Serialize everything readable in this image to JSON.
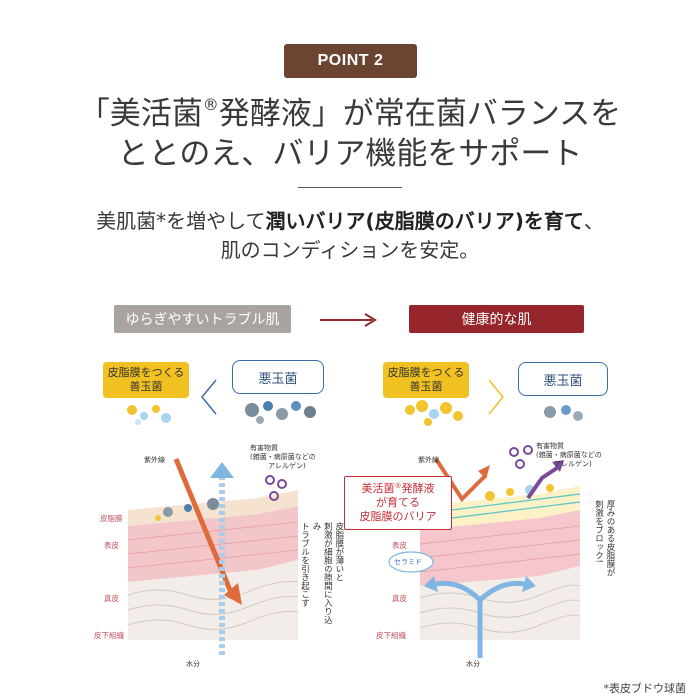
{
  "badge": "POINT 2",
  "headline": {
    "line1_pre": "「美活菌",
    "line1_reg": "®",
    "line1_post": "発酵液」が常在菌バランスを",
    "line2": "ととのえ、バリア機能をサポート"
  },
  "subline": {
    "line1_pre": "美肌菌*を増やして",
    "line1_bold": "潤いバリア(皮脂膜のバリア)を育て",
    "line1_post": "、",
    "line2": "肌のコンディションを安定。"
  },
  "left": {
    "state_label": "ゆらぎやすいトラブル肌",
    "good_line1": "皮脂膜をつくる",
    "good_line2": "善玉菌",
    "bad_label": "悪玉菌",
    "uv_label": "紫外線",
    "harmful_line1": "有害物質",
    "harmful_line2": "(雑菌・病原菌などの",
    "harmful_line3": "アレルゲン)",
    "layer_sebum": "皮脂膜",
    "layer_epidermis": "表皮",
    "layer_dermis": "真皮",
    "layer_subcutis": "皮下組織",
    "water_label": "水分",
    "side_note_1": "皮脂膜が薄いと",
    "side_note_2": "刺激が細胞の隙間に入り込み",
    "side_note_3": "トラブルを引き起こす"
  },
  "right": {
    "state_label": "健康的な肌",
    "good_line1": "皮脂膜をつくる",
    "good_line2": "善玉菌",
    "bad_label": "悪玉菌",
    "uv_label": "紫外線",
    "harmful_line1": "有害物質",
    "harmful_line2": "(雑菌・病原菌などの",
    "harmful_line3": "アレルゲン)",
    "callout_line1_pre": "美活菌",
    "callout_line1_reg": "®",
    "callout_line1_post": "発酵液",
    "callout_line2": "が育てる",
    "callout_line3": "皮脂膜のバリア",
    "ceramide_label": "セラミド",
    "layer_epidermis": "表皮",
    "layer_dermis": "真皮",
    "layer_subcutis": "皮下組織",
    "water_label": "水分",
    "side_note_1": "厚みのある皮脂膜が",
    "side_note_2": "刺激をブロック!"
  },
  "footnote": "*表皮ブドウ球菌",
  "colors": {
    "badge": "#6b4532",
    "left_state": "#a9a4a0",
    "right_state": "#96262b",
    "good_germ": "#f0c121",
    "bad_germ_border": "#3d6ea8",
    "uv_arrow": "#e06b3a",
    "water_arrow": "#7fb5e0",
    "harmful_arrow": "#7a4a9a",
    "callout": "#c62e35"
  }
}
